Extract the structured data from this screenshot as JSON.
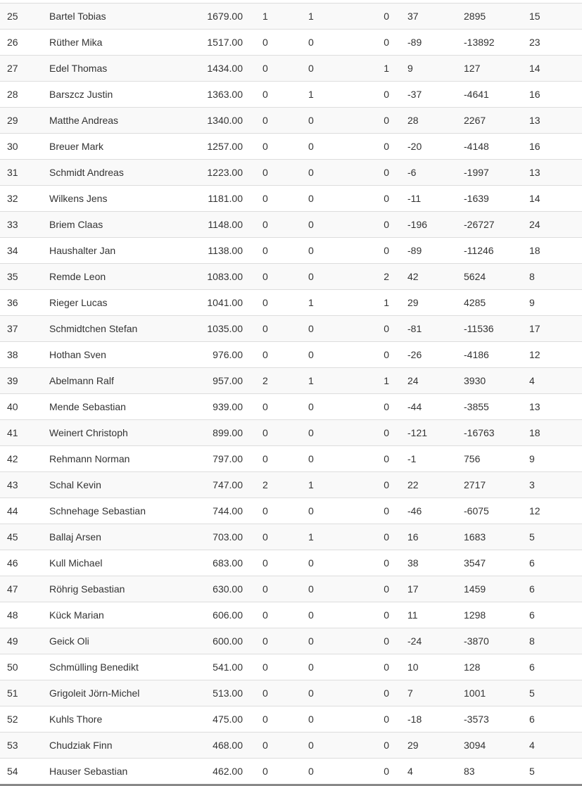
{
  "rows": [
    [
      "25",
      "Bartel Tobias",
      "1679.00",
      "1",
      "1",
      "0",
      "37",
      "2895",
      "15"
    ],
    [
      "26",
      "Rüther Mika",
      "1517.00",
      "0",
      "0",
      "0",
      "-89",
      "-13892",
      "23"
    ],
    [
      "27",
      "Edel Thomas",
      "1434.00",
      "0",
      "0",
      "1",
      "9",
      "127",
      "14"
    ],
    [
      "28",
      "Barszcz Justin",
      "1363.00",
      "0",
      "1",
      "0",
      "-37",
      "-4641",
      "16"
    ],
    [
      "29",
      "Matthe Andreas",
      "1340.00",
      "0",
      "0",
      "0",
      "28",
      "2267",
      "13"
    ],
    [
      "30",
      "Breuer Mark",
      "1257.00",
      "0",
      "0",
      "0",
      "-20",
      "-4148",
      "16"
    ],
    [
      "31",
      "Schmidt Andreas",
      "1223.00",
      "0",
      "0",
      "0",
      "-6",
      "-1997",
      "13"
    ],
    [
      "32",
      "Wilkens Jens",
      "1181.00",
      "0",
      "0",
      "0",
      "-11",
      "-1639",
      "14"
    ],
    [
      "33",
      "Briem Claas",
      "1148.00",
      "0",
      "0",
      "0",
      "-196",
      "-26727",
      "24"
    ],
    [
      "34",
      "Haushalter Jan",
      "1138.00",
      "0",
      "0",
      "0",
      "-89",
      "-11246",
      "18"
    ],
    [
      "35",
      "Remde Leon",
      "1083.00",
      "0",
      "0",
      "2",
      "42",
      "5624",
      "8"
    ],
    [
      "36",
      "Rieger Lucas",
      "1041.00",
      "0",
      "1",
      "1",
      "29",
      "4285",
      "9"
    ],
    [
      "37",
      "Schmidtchen Stefan",
      "1035.00",
      "0",
      "0",
      "0",
      "-81",
      "-11536",
      "17"
    ],
    [
      "38",
      "Hothan Sven",
      "976.00",
      "0",
      "0",
      "0",
      "-26",
      "-4186",
      "12"
    ],
    [
      "39",
      "Abelmann Ralf",
      "957.00",
      "2",
      "1",
      "1",
      "24",
      "3930",
      "4"
    ],
    [
      "40",
      "Mende Sebastian",
      "939.00",
      "0",
      "0",
      "0",
      "-44",
      "-3855",
      "13"
    ],
    [
      "41",
      "Weinert Christoph",
      "899.00",
      "0",
      "0",
      "0",
      "-121",
      "-16763",
      "18"
    ],
    [
      "42",
      "Rehmann Norman",
      "797.00",
      "0",
      "0",
      "0",
      "-1",
      "756",
      "9"
    ],
    [
      "43",
      "Schal Kevin",
      "747.00",
      "2",
      "1",
      "0",
      "22",
      "2717",
      "3"
    ],
    [
      "44",
      "Schnehage Sebastian",
      "744.00",
      "0",
      "0",
      "0",
      "-46",
      "-6075",
      "12"
    ],
    [
      "45",
      "Ballaj Arsen",
      "703.00",
      "0",
      "1",
      "0",
      "16",
      "1683",
      "5"
    ],
    [
      "46",
      "Kull Michael",
      "683.00",
      "0",
      "0",
      "0",
      "38",
      "3547",
      "6"
    ],
    [
      "47",
      "Röhrig Sebastian",
      "630.00",
      "0",
      "0",
      "0",
      "17",
      "1459",
      "6"
    ],
    [
      "48",
      "Kück Marian",
      "606.00",
      "0",
      "0",
      "0",
      "11",
      "1298",
      "6"
    ],
    [
      "49",
      "Geick Oli",
      "600.00",
      "0",
      "0",
      "0",
      "-24",
      "-3870",
      "8"
    ],
    [
      "50",
      "Schmülling Benedikt",
      "541.00",
      "0",
      "0",
      "0",
      "10",
      "128",
      "6"
    ],
    [
      "51",
      "Grigoleit Jörn-Michel",
      "513.00",
      "0",
      "0",
      "0",
      "7",
      "1001",
      "5"
    ],
    [
      "52",
      "Kuhls Thore",
      "475.00",
      "0",
      "0",
      "0",
      "-18",
      "-3573",
      "6"
    ],
    [
      "53",
      "Chudziak Finn",
      "468.00",
      "0",
      "0",
      "0",
      "29",
      "3094",
      "4"
    ],
    [
      "54",
      "Hauser Sebastian",
      "462.00",
      "0",
      "0",
      "0",
      "4",
      "83",
      "5"
    ]
  ]
}
